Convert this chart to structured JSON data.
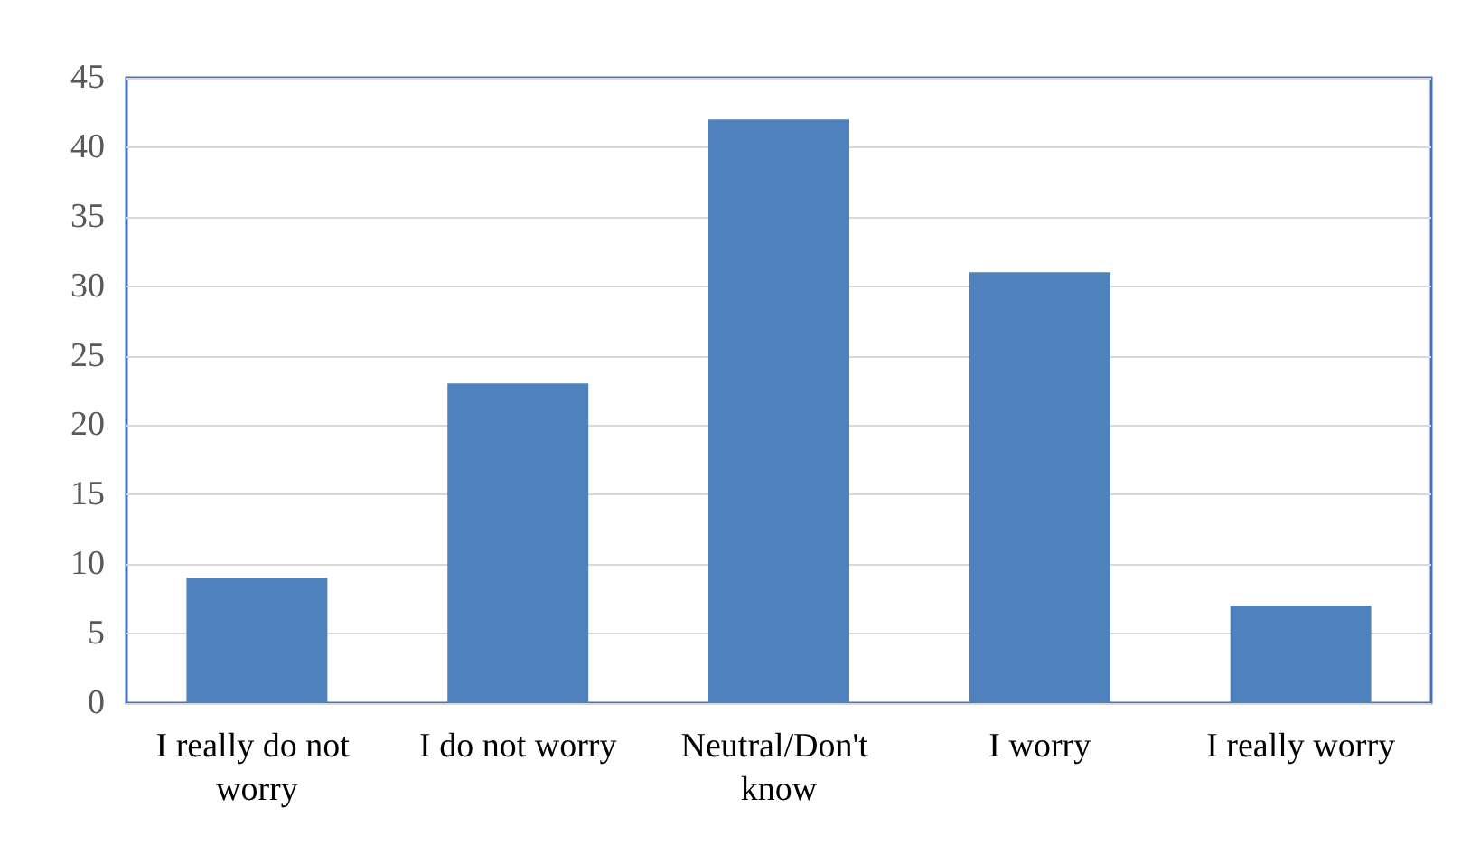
{
  "chart_data": {
    "type": "bar",
    "categories": [
      "I really do not worry",
      "I do not worry",
      "Neutral/Don't know",
      "I worry",
      "I really worry"
    ],
    "values": [
      9,
      23,
      42,
      31,
      7
    ],
    "color": "#4f81bd",
    "ylim": [
      0,
      45
    ],
    "yticks": [
      0,
      5,
      10,
      15,
      20,
      25,
      30,
      35,
      40,
      45
    ],
    "grid": "y"
  }
}
